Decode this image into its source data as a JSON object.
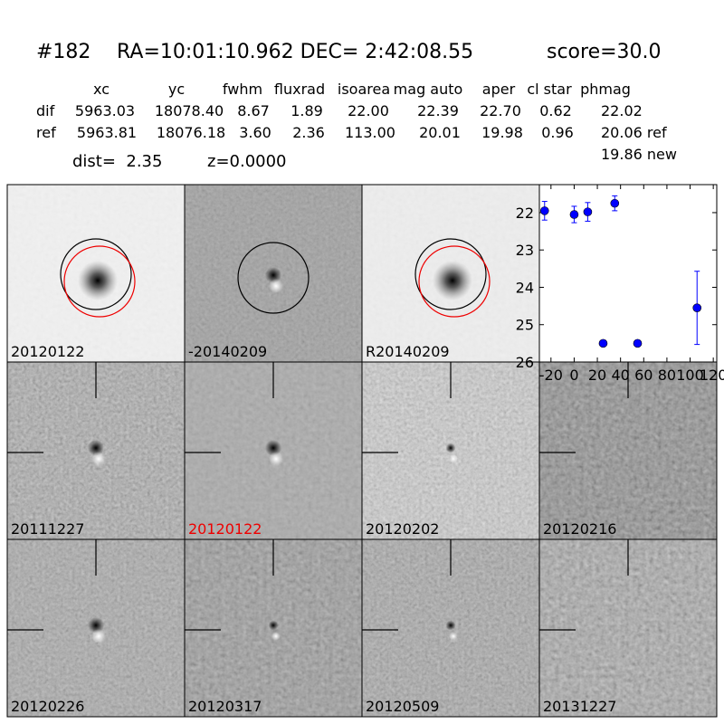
{
  "header": {
    "id": "#182",
    "coords": "RA=10:01:10.962 DEC= 2:42:08.55",
    "score": "score=30.0"
  },
  "table": {
    "columns": [
      "xc",
      "yc",
      "fwhm",
      "fluxrad",
      "isoarea",
      "mag auto",
      "aper",
      "cl star",
      "phmag"
    ],
    "rows": [
      [
        "dif",
        "5963.03",
        "18078.40",
        "8.67",
        "1.89",
        "22.00",
        "22.39",
        "22.70",
        "0.62",
        "22.02"
      ],
      [
        "ref",
        "5963.81",
        "18076.18",
        "3.60",
        "2.36",
        "113.00",
        "20.01",
        "19.98",
        "0.96",
        "20.06 ref"
      ]
    ],
    "extra": "19.86 new"
  },
  "summary": {
    "dist": "dist=  2.35",
    "z": "z=0.0000"
  },
  "stamps": [
    "20120122",
    "-20140209",
    "R20140209",
    "20111227",
    "20120122",
    "20120202",
    "20120216",
    "20120226",
    "20120317",
    "20120509",
    "20131227"
  ],
  "chart_data": {
    "type": "scatter",
    "color": "#0000ff",
    "x": [
      -25.5,
      0,
      11.7,
      25,
      35,
      54.7,
      106
    ],
    "y": [
      21.95,
      22.05,
      21.98,
      25.5,
      21.75,
      25.5,
      24.55
    ],
    "errors": [
      0.25,
      0.22,
      0.25,
      0.08,
      0.2,
      0.08,
      0.98
    ],
    "xlim": [
      -30,
      123
    ],
    "ylim": [
      21.25,
      26
    ],
    "y_inverted": true,
    "xticks": [
      -20,
      0,
      20,
      40,
      60,
      80,
      100,
      120
    ],
    "yticks": [
      22,
      23,
      24,
      25,
      26
    ]
  }
}
